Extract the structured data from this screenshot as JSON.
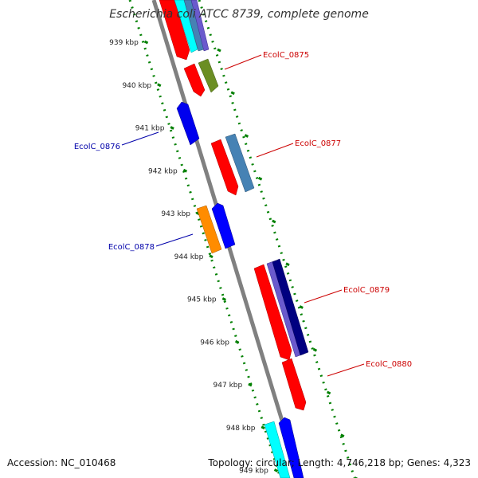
{
  "title": "Escherichia coli ATCC 8739, complete genome",
  "footer": {
    "accession": "Accession: NC_010468",
    "summary": "Topology: circular; Length: 4,746,218 bp; Genes: 4,323"
  },
  "scale": {
    "labels": [
      "939 kbp",
      "940 kbp",
      "941 kbp",
      "942 kbp",
      "943 kbp",
      "944 kbp",
      "945 kbp",
      "946 kbp",
      "947 kbp",
      "948 kbp",
      "949 kbp"
    ]
  },
  "genes": [
    {
      "id": "EcolC_0875",
      "strand": "forward",
      "color": "#ff0000"
    },
    {
      "id": "EcolC_0876",
      "strand": "reverse",
      "color": "#0000cc"
    },
    {
      "id": "EcolC_0877",
      "strand": "forward",
      "color": "#ff0000"
    },
    {
      "id": "EcolC_0878",
      "strand": "reverse",
      "color": "#0000cc"
    },
    {
      "id": "EcolC_0879",
      "strand": "forward",
      "color": "#ff0000"
    },
    {
      "id": "EcolC_0880",
      "strand": "forward",
      "color": "#ff0000"
    }
  ],
  "colors": {
    "backbone": "#808080",
    "tick_marks": "#008000",
    "forward_label": "#cc0000",
    "reverse_label": "#0000aa",
    "feature_palette": [
      "#ff0000",
      "#0000ff",
      "#00ffff",
      "#6b8e23",
      "#4682b4",
      "#ff8c00",
      "#6a5acd",
      "#000080",
      "#1e90ff"
    ]
  }
}
